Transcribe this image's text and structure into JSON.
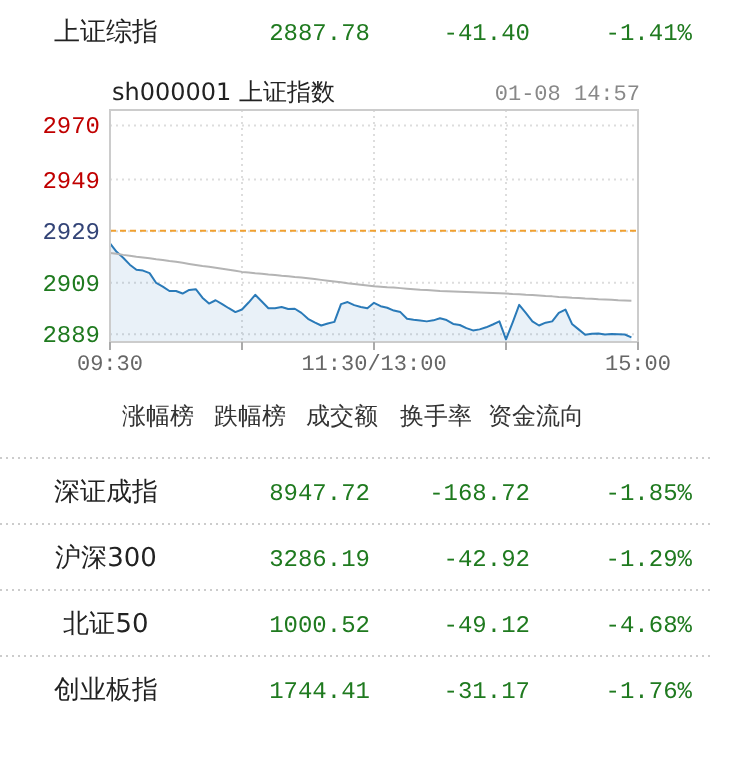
{
  "chart_data": {
    "type": "line",
    "title": "sh000001 上证指数",
    "subtitle": "01-08 14:57",
    "annotations": [
      "上证综指",
      "2887.78",
      "-41.40",
      "-1.41%",
      "涨幅榜",
      "跌幅榜",
      "成交额",
      "换手率",
      "资金流向",
      "深证成指",
      "8947.72",
      "-168.72",
      "-1.85%",
      "沪深300",
      "3286.19",
      "-42.92",
      "-1.29%",
      "北证50",
      "1000.52",
      "-49.12",
      "-4.68%",
      "创业板指",
      "1744.41",
      "-31.17",
      "-1.76%"
    ],
    "categories": [
      "09:30",
      null,
      null,
      null,
      null,
      null,
      null,
      null,
      null,
      null,
      null,
      null,
      null,
      null,
      null,
      null,
      null,
      null,
      null,
      null,
      null,
      null,
      null,
      null,
      null,
      null,
      null,
      null,
      null,
      null,
      null,
      null,
      null,
      null,
      null,
      null,
      null,
      null,
      null,
      null,
      "11:30/13:00",
      null,
      null,
      null,
      null,
      null,
      null,
      null,
      null,
      null,
      null,
      null,
      null,
      null,
      null,
      null,
      null,
      null,
      null,
      null,
      null,
      null,
      null,
      null,
      null,
      null,
      null,
      null,
      null,
      null,
      null,
      null,
      null,
      null,
      null,
      null,
      null,
      null,
      null,
      null,
      "15:00"
    ],
    "ylim": [
      2886,
      2976
    ],
    "yticks": [
      2889,
      2909,
      2929,
      2949,
      2970
    ],
    "grid": true,
    "ref_lines": [
      {
        "axis": "y",
        "value": 2929.18,
        "color": "#f0a030",
        "line_style": "dashed"
      }
    ],
    "series": [
      {
        "type": "area",
        "color": "#2a7ab8",
        "values": [
          2924.3,
          2921.0,
          2918.7,
          2916.0,
          2914.0,
          2913.7,
          2912.7,
          2908.9,
          2907.5,
          2905.8,
          2905.8,
          2904.8,
          2906.2,
          2906.5,
          2903.2,
          2900.9,
          2902.2,
          2900.7,
          2899.1,
          2897.6,
          2898.6,
          2901.3,
          2904.3,
          2901.7,
          2899.1,
          2899.1,
          2899.6,
          2898.8,
          2898.9,
          2897.3,
          2895.0,
          2893.6,
          2892.4,
          2893.2,
          2893.8,
          2900.7,
          2901.5,
          2900.3,
          2899.6,
          2899.1,
          2901.2,
          2899.9,
          2899.3,
          2898.2,
          2897.6,
          2895.0,
          2894.6,
          2894.3,
          2894.0,
          2894.4,
          2895.2,
          2894.5,
          2893.0,
          2892.6,
          2891.4,
          2890.5,
          2890.9,
          2891.7,
          2892.8,
          2894.0,
          2887.0,
          2893.5,
          2900.4,
          2897.3,
          2894.0,
          2892.4,
          2893.5,
          2894.0,
          2897.3,
          2898.6,
          2893.0,
          2890.9,
          2888.8,
          2889.2,
          2889.3,
          2888.9,
          2889.1,
          2889.0,
          2888.9,
          2887.8,
          null
        ]
      },
      {
        "color": "#b4b4b4",
        "values": [
          2920.5,
          2920.2,
          2919.8,
          2919.5,
          2919.1,
          2918.8,
          2918.5,
          2918.1,
          2917.8,
          2917.4,
          2917.1,
          2916.7,
          2916.3,
          2915.9,
          2915.5,
          2915.2,
          2914.8,
          2914.4,
          2914.0,
          2913.6,
          2913.2,
          2913.0,
          2912.7,
          2912.5,
          2912.2,
          2912.0,
          2911.7,
          2911.5,
          2911.2,
          2911.0,
          2910.7,
          2910.4,
          2910.1,
          2909.8,
          2909.5,
          2909.2,
          2908.8,
          2908.5,
          2908.2,
          2907.9,
          2907.6,
          2907.4,
          2907.2,
          2907.1,
          2906.9,
          2906.7,
          2906.5,
          2906.3,
          2906.2,
          2906.0,
          2905.8,
          2905.7,
          2905.6,
          2905.5,
          2905.4,
          2905.3,
          2905.2,
          2905.1,
          2905.0,
          2904.9,
          2904.8,
          2904.6,
          2904.5,
          2904.3,
          2904.2,
          2904.0,
          2903.8,
          2903.7,
          2903.5,
          2903.4,
          2903.2,
          2903.1,
          2902.9,
          2902.8,
          2902.6,
          2902.5,
          2902.4,
          2902.2,
          2902.1,
          2902.0,
          null
        ]
      }
    ]
  }
}
